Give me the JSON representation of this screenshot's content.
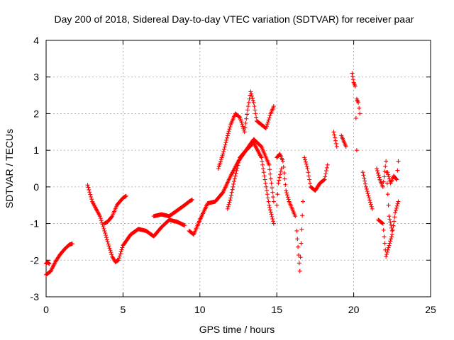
{
  "chart_data": {
    "type": "scatter",
    "title": "Day 200 of 2018, Sidereal Day-to-day VTEC variation (SDTVAR) for receiver paar",
    "xlabel": "GPS time / hours",
    "ylabel": "SDTVAR / TECUs",
    "xlim": [
      0,
      25
    ],
    "ylim": [
      -3,
      4
    ],
    "xticks": [
      0,
      5,
      10,
      15,
      20,
      25
    ],
    "yticks": [
      -3,
      -2,
      -1,
      0,
      1,
      2,
      3,
      4
    ],
    "grid": true,
    "marker": "+",
    "marker_color": "#ff0000",
    "series": [
      {
        "name": "SDTVAR",
        "segments": [
          {
            "x": [
              0.0,
              0.1,
              0.2
            ],
            "y": [
              -2.1,
              -2.05,
              -2.1
            ]
          },
          {
            "x": [
              0.0,
              0.3,
              0.6,
              0.9,
              1.2,
              1.5,
              1.7
            ],
            "y": [
              -2.4,
              -2.3,
              -2.05,
              -1.85,
              -1.7,
              -1.58,
              -1.55
            ]
          },
          {
            "x": [
              2.7,
              3.0,
              3.5,
              3.8,
              4.0,
              4.3,
              4.5,
              4.7,
              5.0,
              5.5,
              6.0,
              6.5,
              7.0,
              7.5,
              8.0,
              8.5,
              9.0
            ],
            "y": [
              0.05,
              -0.4,
              -0.8,
              -1.2,
              -1.5,
              -1.9,
              -2.05,
              -2.0,
              -1.6,
              -1.3,
              -1.15,
              -1.2,
              -1.35,
              -1.1,
              -0.9,
              -0.95,
              -1.05
            ]
          },
          {
            "x": [
              3.8,
              4.0,
              4.3,
              4.6,
              5.0,
              5.2
            ],
            "y": [
              -1.0,
              -0.95,
              -0.8,
              -0.5,
              -0.3,
              -0.25
            ]
          },
          {
            "x": [
              7.0,
              7.5,
              8.0,
              8.5,
              9.0,
              9.3,
              9.5
            ],
            "y": [
              -0.8,
              -0.75,
              -0.8,
              -0.65,
              -0.5,
              -0.4,
              -0.35
            ]
          },
          {
            "x": [
              9.3,
              9.6,
              10.0,
              10.5,
              11.0,
              11.5,
              12.0,
              12.5,
              13.0,
              13.5,
              14.0,
              14.5,
              14.8
            ],
            "y": [
              -1.2,
              -1.3,
              -0.9,
              -0.45,
              -0.4,
              -0.15,
              0.3,
              0.7,
              1.0,
              1.3,
              1.1,
              0.6,
              -0.4
            ]
          },
          {
            "x": [
              11.2,
              11.5,
              11.8,
              12.0,
              12.3,
              12.6,
              12.9,
              13.1,
              13.3,
              13.5,
              13.7,
              14.0,
              14.3,
              14.6,
              14.8
            ],
            "y": [
              0.5,
              0.9,
              1.4,
              1.7,
              2.0,
              1.9,
              1.5,
              2.1,
              2.6,
              2.3,
              1.8,
              1.7,
              1.6,
              2.0,
              2.2
            ]
          },
          {
            "x": [
              11.8,
              12.0,
              12.3,
              12.6,
              13.0,
              13.5,
              14.0,
              14.5,
              14.8
            ],
            "y": [
              -0.6,
              -0.3,
              0.3,
              0.8,
              1.0,
              1.2,
              0.8,
              -0.5,
              -1.0
            ]
          },
          {
            "x": [
              15.0,
              15.2,
              15.4,
              15.6,
              15.8,
              16.0,
              16.2
            ],
            "y": [
              0.8,
              0.9,
              0.7,
              -0.1,
              -0.4,
              -0.6,
              -0.8
            ]
          },
          {
            "x": [
              15.0,
              15.1,
              15.3
            ],
            "y": [
              -0.5,
              0.1,
              0.5
            ]
          },
          {
            "x": [
              16.3,
              16.5,
              16.7
            ],
            "y": [
              -1.2,
              -2.3,
              -0.4
            ]
          },
          {
            "x": [
              16.8,
              17.0,
              17.2,
              17.5,
              17.8,
              18.1,
              18.3
            ],
            "y": [
              0.8,
              0.5,
              0.0,
              -0.1,
              0.1,
              0.2,
              0.6
            ]
          },
          {
            "x": [
              18.7,
              18.9
            ],
            "y": [
              1.5,
              1.1
            ]
          },
          {
            "x": [
              19.2,
              19.5
            ],
            "y": [
              1.4,
              1.1
            ]
          },
          {
            "x": [
              19.9,
              20.0,
              20.1,
              20.2
            ],
            "y": [
              3.1,
              2.85,
              2.75,
              1.0
            ]
          },
          {
            "x": [
              20.2,
              20.3,
              20.4
            ],
            "y": [
              2.4,
              2.3,
              2.0
            ]
          },
          {
            "x": [
              20.6,
              20.8,
              21.0,
              21.2
            ],
            "y": [
              0.4,
              0.0,
              -0.3,
              -0.6
            ]
          },
          {
            "x": [
              21.5,
              21.7,
              21.9,
              22.1,
              22.3,
              22.5
            ],
            "y": [
              0.5,
              0.2,
              0.0,
              0.7,
              -0.8,
              -1.2
            ]
          },
          {
            "x": [
              21.6,
              21.9,
              22.1,
              22.3,
              22.5,
              22.7,
              22.9
            ],
            "y": [
              -0.9,
              -1.0,
              -1.9,
              -1.6,
              -1.3,
              -0.7,
              -0.4
            ]
          },
          {
            "x": [
              22.2,
              22.4,
              22.6,
              22.8,
              22.9
            ],
            "y": [
              0.4,
              0.1,
              0.3,
              0.2,
              0.7
            ]
          }
        ]
      }
    ]
  }
}
